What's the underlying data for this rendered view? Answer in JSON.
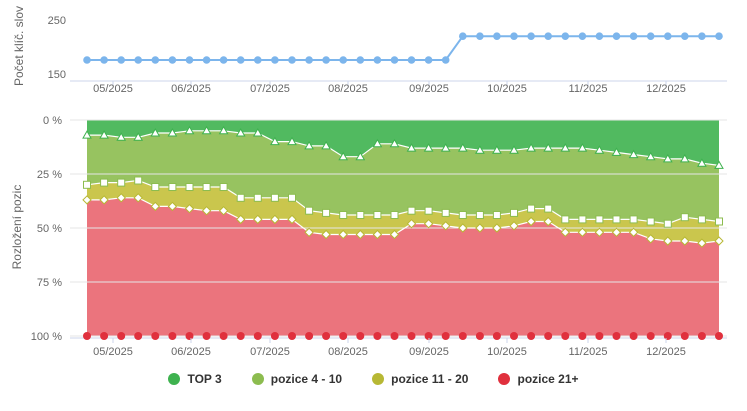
{
  "top_chart": {
    "ylabel": "Počet klíč. slov",
    "yticks": [
      "250",
      "150"
    ],
    "xticks": [
      "05/2025",
      "06/2025",
      "07/2025",
      "08/2025",
      "09/2025",
      "10/2025",
      "11/2025",
      "12/2025"
    ],
    "line_color": "#7cb5ec"
  },
  "bottom_chart": {
    "ylabel": "Rozložení pozic",
    "yticks": [
      "0 %",
      "25 %",
      "50 %",
      "75 %",
      "100 %"
    ],
    "xticks": [
      "05/2025",
      "06/2025",
      "07/2025",
      "08/2025",
      "09/2025",
      "10/2025",
      "11/2025",
      "12/2025"
    ]
  },
  "legend": [
    {
      "label": "TOP 3",
      "color": "#3eb24f"
    },
    {
      "label": "pozice 4 - 10",
      "color": "#8cbc4f"
    },
    {
      "label": "pozice 11 - 20",
      "color": "#b7b834"
    },
    {
      "label": "pozice 21+",
      "color": "#e0303d"
    }
  ],
  "chart_data": [
    {
      "type": "line",
      "ylabel": "Počet klíč. slov",
      "ylim": [
        150,
        250
      ],
      "x": [
        "2025-04-06",
        "2025-04-13",
        "2025-04-20",
        "2025-04-27",
        "2025-05-04",
        "2025-05-11",
        "2025-05-18",
        "2025-05-25",
        "2025-06-01",
        "2025-06-08",
        "2025-06-15",
        "2025-06-22",
        "2025-06-29",
        "2025-07-06",
        "2025-07-13",
        "2025-07-20",
        "2025-07-27",
        "2025-08-03",
        "2025-08-10",
        "2025-08-17",
        "2025-08-24",
        "2025-08-31",
        "2025-09-07",
        "2025-09-14",
        "2025-09-21",
        "2025-09-28",
        "2025-10-05",
        "2025-10-12",
        "2025-10-19",
        "2025-10-26",
        "2025-11-02",
        "2025-11-09",
        "2025-11-16",
        "2025-11-23",
        "2025-11-30",
        "2025-12-07",
        "2025-12-14",
        "2025-12-21"
      ],
      "series": [
        {
          "values": [
            176,
            176,
            176,
            176,
            176,
            176,
            176,
            176,
            176,
            176,
            176,
            176,
            176,
            176,
            176,
            176,
            176,
            176,
            176,
            176,
            176,
            176,
            220,
            220,
            220,
            220,
            220,
            220,
            220,
            220,
            220,
            220,
            220,
            220,
            220,
            220,
            220,
            220
          ]
        }
      ],
      "grid": false
    },
    {
      "type": "area",
      "ylabel": "Rozložení pozic",
      "ylim": [
        0,
        100
      ],
      "stacked": true,
      "percent": true,
      "x": [
        "2025-04-06",
        "2025-04-13",
        "2025-04-20",
        "2025-04-27",
        "2025-05-04",
        "2025-05-11",
        "2025-05-18",
        "2025-05-25",
        "2025-06-01",
        "2025-06-08",
        "2025-06-15",
        "2025-06-22",
        "2025-06-29",
        "2025-07-06",
        "2025-07-13",
        "2025-07-20",
        "2025-07-27",
        "2025-08-03",
        "2025-08-10",
        "2025-08-17",
        "2025-08-24",
        "2025-08-31",
        "2025-09-07",
        "2025-09-14",
        "2025-09-21",
        "2025-09-28",
        "2025-10-05",
        "2025-10-12",
        "2025-10-19",
        "2025-10-26",
        "2025-11-02",
        "2025-11-09",
        "2025-11-16",
        "2025-11-23",
        "2025-11-30",
        "2025-12-07",
        "2025-12-14",
        "2025-12-21"
      ],
      "series": [
        {
          "name": "TOP 3",
          "values": [
            7,
            7,
            8,
            8,
            6,
            6,
            5,
            5,
            5,
            6,
            6,
            10,
            10,
            12,
            12,
            17,
            17,
            11,
            11,
            13,
            13,
            13,
            13,
            14,
            14,
            14,
            13,
            13,
            13,
            13,
            14,
            15,
            16,
            17,
            18,
            18,
            20,
            21
          ]
        },
        {
          "name": "pozice 4 - 10",
          "values": [
            23,
            22,
            21,
            20,
            25,
            25,
            26,
            26,
            26,
            30,
            30,
            26,
            26,
            30,
            31,
            27,
            27,
            33,
            33,
            29,
            29,
            30,
            31,
            30,
            30,
            29,
            28,
            28,
            33,
            33,
            32,
            31,
            30,
            30,
            30,
            27,
            26,
            26
          ]
        },
        {
          "name": "pozice 11 - 20",
          "values": [
            7,
            8,
            7,
            8,
            9,
            9,
            10,
            11,
            11,
            10,
            10,
            10,
            10,
            10,
            10,
            9,
            9,
            9,
            9,
            6,
            6,
            6,
            6,
            6,
            6,
            6,
            6,
            6,
            6,
            6,
            6,
            6,
            6,
            8,
            8,
            11,
            11,
            9
          ]
        },
        {
          "name": "pozice 21+",
          "values": [
            63,
            63,
            64,
            64,
            60,
            60,
            59,
            58,
            58,
            54,
            54,
            54,
            54,
            48,
            47,
            47,
            47,
            47,
            47,
            52,
            52,
            51,
            50,
            50,
            50,
            51,
            53,
            53,
            48,
            48,
            48,
            48,
            48,
            45,
            44,
            44,
            43,
            44
          ]
        }
      ],
      "legend": "bottom",
      "grid": true
    }
  ]
}
